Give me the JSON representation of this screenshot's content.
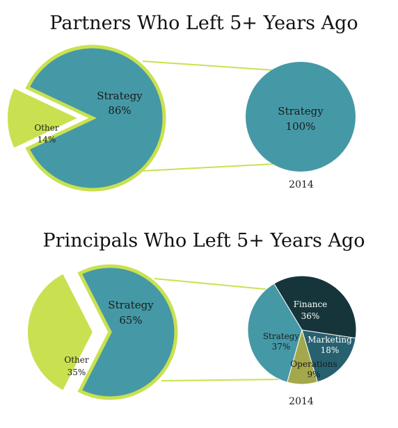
{
  "colors": {
    "strategy": "#4599a6",
    "other": "#c9e150",
    "outline": "#c9e150",
    "connector": "#c9e150",
    "finance": "#16353a",
    "marketing": "#276170",
    "operations": "#a4a84b"
  },
  "chart_data": [
    {
      "type": "pie",
      "title": "Partners Who Left 5+ Years Ago",
      "main": {
        "slices": [
          {
            "label": "Strategy",
            "value": 86,
            "display": "86%"
          },
          {
            "label": "Other",
            "value": 14,
            "display": "14%"
          }
        ]
      },
      "breakdown": {
        "label": "2014",
        "slices": [
          {
            "label": "Strategy",
            "value": 100,
            "display": "100%"
          }
        ]
      }
    },
    {
      "type": "pie",
      "title": "Principals Who Left 5+ Years Ago",
      "main": {
        "slices": [
          {
            "label": "Strategy",
            "value": 65,
            "display": "65%"
          },
          {
            "label": "Other",
            "value": 35,
            "display": "35%"
          }
        ]
      },
      "breakdown": {
        "label": "2014",
        "slices": [
          {
            "label": "Finance",
            "value": 36,
            "display": "36%"
          },
          {
            "label": "Marketing",
            "value": 18,
            "display": "18%"
          },
          {
            "label": "Operations",
            "value": 9,
            "display": "9%"
          },
          {
            "label": "Strategy",
            "value": 37,
            "display": "37%"
          }
        ]
      }
    }
  ]
}
